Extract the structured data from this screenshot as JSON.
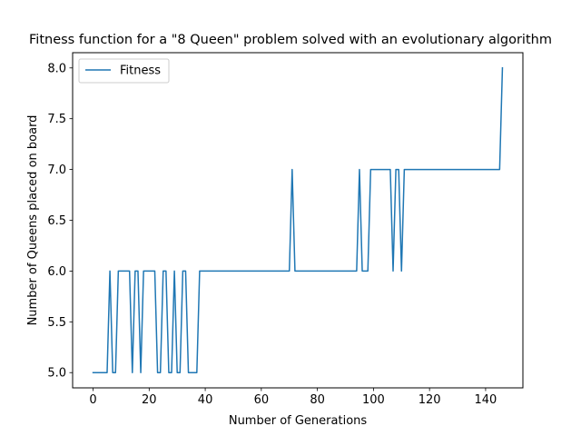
{
  "chart_data": {
    "type": "line",
    "title": "Fitness function for a \"8 Queen\" problem solved with an evolutionary algorithm",
    "xlabel": "Number of Generations",
    "ylabel": "Number of Queens placed on board",
    "xlim": [
      -7.3,
      153.3
    ],
    "ylim": [
      4.85,
      8.15
    ],
    "xticks": [
      0,
      20,
      40,
      60,
      80,
      100,
      120,
      140
    ],
    "yticks": [
      5.0,
      5.5,
      6.0,
      6.5,
      7.0,
      7.5,
      8.0
    ],
    "ytick_labels": [
      "5.0",
      "5.5",
      "6.0",
      "6.5",
      "7.0",
      "7.5",
      "8.0"
    ],
    "grid": false,
    "legend": {
      "placement": "top-left",
      "entries": [
        "Fitness"
      ]
    },
    "series": [
      {
        "name": "Fitness",
        "color": "#1f77b4",
        "x": [
          0,
          5,
          6,
          7,
          8,
          9,
          13,
          14,
          15,
          16,
          17,
          18,
          19,
          22,
          23,
          24,
          25,
          26,
          27,
          28,
          29,
          30,
          31,
          32,
          33,
          34,
          35,
          36,
          37,
          38,
          70,
          71,
          72,
          94,
          95,
          96,
          98,
          99,
          106,
          107,
          108,
          109,
          110,
          111,
          145,
          146
        ],
        "values": [
          5,
          5,
          6,
          5,
          5,
          6,
          6,
          5,
          6,
          6,
          5,
          6,
          6,
          6,
          5,
          5,
          6,
          6,
          5,
          5,
          6,
          5,
          5,
          6,
          6,
          5,
          5,
          5,
          5,
          6,
          6,
          7,
          6,
          6,
          7,
          6,
          6,
          7,
          7,
          6,
          7,
          7,
          6,
          7,
          7,
          8
        ]
      }
    ]
  }
}
